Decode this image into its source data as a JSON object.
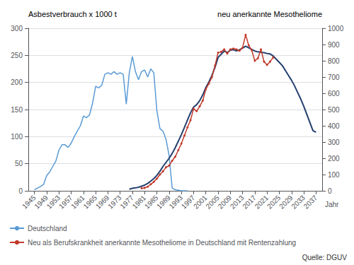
{
  "chart_data": {
    "type": "line",
    "ylabel": "Asbestverbrauch x 1000 t",
    "y2label": "neu anerkannte Mesotheliome",
    "xlabel": "Jahr",
    "annotations": [
      "Quelle: DGUV"
    ],
    "xlim": [
      1943,
      2039
    ],
    "xticks": [
      1945,
      1949,
      1953,
      1957,
      1961,
      1965,
      1969,
      1973,
      1977,
      1981,
      1985,
      1989,
      1993,
      1997,
      2001,
      2005,
      2009,
      2013,
      2017,
      2021,
      2025,
      2029,
      2033,
      2037
    ],
    "ylim": [
      0,
      300
    ],
    "yticks": [
      0,
      50,
      100,
      150,
      200,
      250,
      300
    ],
    "y2lim": [
      0,
      1000
    ],
    "y2ticks": [
      0,
      100,
      200,
      300,
      400,
      500,
      600,
      700,
      800,
      900,
      1000
    ],
    "grid": true,
    "legend": "lower left",
    "series": [
      {
        "name": "Deutschland",
        "color": "#5b9bd5",
        "x": [
          1945,
          1946,
          1947,
          1948,
          1949,
          1950,
          1951,
          1952,
          1953,
          1954,
          1955,
          1956,
          1957,
          1958,
          1959,
          1960,
          1961,
          1962,
          1963,
          1964,
          1965,
          1966,
          1967,
          1968,
          1969,
          1970,
          1971,
          1972,
          1973,
          1974,
          1975,
          1976,
          1977,
          1978,
          1979,
          1980,
          1981,
          1982,
          1983,
          1984,
          1985,
          1986,
          1987,
          1988,
          1989,
          1990,
          1991,
          1992,
          1993,
          1994,
          1995
        ],
        "values": [
          2,
          5,
          8,
          12,
          28,
          35,
          45,
          55,
          75,
          85,
          85,
          80,
          88,
          100,
          110,
          120,
          138,
          135,
          140,
          162,
          193,
          190,
          195,
          215,
          218,
          215,
          220,
          215,
          218,
          215,
          160,
          218,
          248,
          220,
          205,
          220,
          223,
          210,
          225,
          218,
          148,
          115,
          110,
          95,
          65,
          5,
          2,
          1,
          0,
          0,
          0
        ]
      },
      {
        "color": "#243f6e",
        "axis": "y2",
        "x": [
          1976,
          1977,
          1978,
          1979,
          1980,
          1981,
          1982,
          1983,
          1984,
          1985,
          1986,
          1987,
          1988,
          1989,
          1990,
          1991,
          1992,
          1993,
          1994,
          1995,
          1996,
          1997,
          1998,
          1999,
          2000,
          2001,
          2002,
          2003,
          2004,
          2005,
          2006,
          2007,
          2008,
          2009,
          2010,
          2011,
          2012,
          2013,
          2014,
          2015,
          2016,
          2017,
          2018,
          2019,
          2020,
          2021,
          2022,
          2023,
          2024,
          2025,
          2026,
          2027,
          2028,
          2029,
          2030,
          2031,
          2032,
          2033,
          2034,
          2035,
          2036,
          2037
        ],
        "values": [
          10,
          15,
          18,
          22,
          28,
          35,
          45,
          60,
          75,
          95,
          120,
          150,
          175,
          200,
          230,
          265,
          305,
          345,
          390,
          435,
          480,
          515,
          530,
          555,
          590,
          635,
          670,
          710,
          760,
          820,
          840,
          860,
          850,
          865,
          868,
          860,
          868,
          878,
          890,
          880,
          870,
          860,
          855,
          852,
          850,
          845,
          842,
          830,
          810,
          790,
          770,
          740,
          710,
          680,
          645,
          605,
          565,
          520,
          470,
          420,
          370,
          360
        ]
      },
      {
        "name": "Neu als Berufskrankheit anerkannte Mesotheliome in Deutschland mit Rentenzahlung",
        "color": "#c0392b",
        "axis": "y2",
        "marker": "o",
        "x": [
          1980,
          1981,
          1982,
          1983,
          1984,
          1985,
          1986,
          1987,
          1988,
          1989,
          1990,
          1991,
          1992,
          1993,
          1994,
          1995,
          1996,
          1997,
          1998,
          1999,
          2000,
          2001,
          2002,
          2003,
          2004,
          2005,
          2006,
          2007,
          2008,
          2009,
          2010,
          2011,
          2012,
          2013,
          2014,
          2015,
          2016,
          2017,
          2018,
          2019,
          2020,
          2021,
          2022,
          2023
        ],
        "values": [
          15,
          18,
          25,
          40,
          55,
          75,
          100,
          120,
          145,
          155,
          185,
          210,
          250,
          290,
          340,
          390,
          435,
          505,
          490,
          520,
          555,
          625,
          660,
          700,
          770,
          850,
          855,
          870,
          845,
          870,
          875,
          870,
          862,
          880,
          960,
          895,
          865,
          800,
          815,
          870,
          795,
          775,
          795,
          820
        ]
      }
    ]
  }
}
